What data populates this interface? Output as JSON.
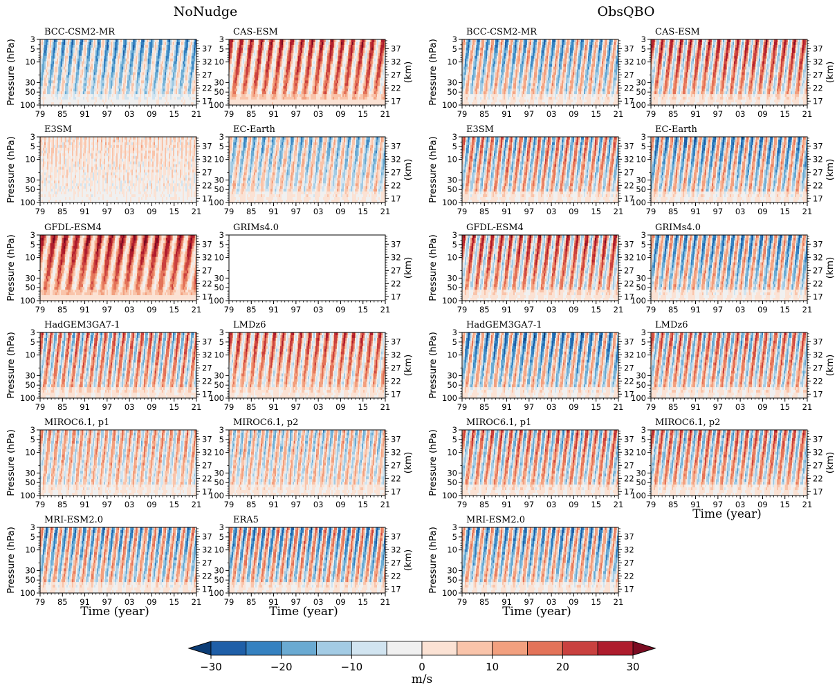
{
  "figure": {
    "column_titles": [
      "NoNudge",
      "ObsQBO"
    ],
    "colorbar_label": "m/s"
  },
  "chart_data": {
    "type": "heatmap",
    "variable_unit": "m/s",
    "x_tick_labels": [
      "79",
      "85",
      "91",
      "97",
      "03",
      "09",
      "15",
      "21"
    ],
    "x_label": "Time (year)",
    "y_label": "Pressure (hPa)",
    "y_ticks": [
      3,
      5,
      10,
      30,
      50,
      100
    ],
    "y_range": [
      100,
      3
    ],
    "y_scale": "log",
    "right_axis_label": "(km)",
    "right_ticks": [
      17,
      22,
      27,
      32,
      37
    ],
    "colorbar": {
      "levels": [
        -35,
        -30,
        -25,
        -20,
        -15,
        -10,
        -5,
        0,
        5,
        10,
        15,
        20,
        25,
        30,
        35
      ],
      "tick_values": [
        -30,
        -20,
        -10,
        0,
        10,
        20,
        30
      ],
      "tick_labels": [
        "−30",
        "−20",
        "−10",
        "0",
        "10",
        "20",
        "30"
      ],
      "colors": [
        "#0b3c75",
        "#1f5fa8",
        "#3581c0",
        "#6aaad2",
        "#a3cbe4",
        "#d1e4f0",
        "#f0f0f0",
        "#fbe2d4",
        "#f9c4aa",
        "#f2a07f",
        "#e37359",
        "#c9413f",
        "#ae1c2d",
        "#7b0c22"
      ],
      "extend": "both"
    },
    "panels": [
      {
        "column": 0,
        "row": 0,
        "title": "BCC-CSM2-MR",
        "upper_bias": -10,
        "lower_bias": -4,
        "amp": 16,
        "period": 26,
        "empty": false
      },
      {
        "column": 0,
        "row": 0,
        "title": "CAS-ESM",
        "upper_bias": 12,
        "lower_bias": 10,
        "amp": 18,
        "period": 30,
        "empty": false
      },
      {
        "column": 0,
        "row": 1,
        "title": "E3SM",
        "upper_bias": 3,
        "lower_bias": -3,
        "amp": 6,
        "period": 12,
        "empty": false
      },
      {
        "column": 0,
        "row": 1,
        "title": "EC-Earth",
        "upper_bias": -6,
        "lower_bias": 2,
        "amp": 16,
        "period": 28,
        "empty": false
      },
      {
        "column": 0,
        "row": 2,
        "title": "GFDL-ESM4",
        "upper_bias": 16,
        "lower_bias": 10,
        "amp": 16,
        "period": 34,
        "empty": false
      },
      {
        "column": 0,
        "row": 2,
        "title": "GRIMs4.0",
        "empty": true
      },
      {
        "column": 0,
        "row": 3,
        "title": "HadGEM3GA7-1",
        "upper_bias": 2,
        "lower_bias": 4,
        "amp": 22,
        "period": 27,
        "empty": false
      },
      {
        "column": 0,
        "row": 3,
        "title": "LMDz6",
        "upper_bias": 10,
        "lower_bias": 2,
        "amp": 18,
        "period": 26,
        "empty": false
      },
      {
        "column": 0,
        "row": 4,
        "title": "MIROC6.1, p1",
        "upper_bias": 2,
        "lower_bias": 0,
        "amp": 16,
        "period": 24,
        "empty": false
      },
      {
        "column": 0,
        "row": 4,
        "title": "MIROC6.1, p2",
        "upper_bias": -2,
        "lower_bias": 2,
        "amp": 16,
        "period": 24,
        "empty": false
      },
      {
        "column": 0,
        "row": 5,
        "title": "MRI-ESM2.0",
        "upper_bias": -4,
        "lower_bias": 2,
        "amp": 22,
        "period": 28,
        "empty": false
      },
      {
        "column": 0,
        "row": 5,
        "title": "ERA5",
        "upper_bias": -4,
        "lower_bias": 2,
        "amp": 24,
        "period": 28,
        "empty": false
      },
      {
        "column": 1,
        "row": 0,
        "title": "BCC-CSM2-MR",
        "upper_bias": -6,
        "lower_bias": 2,
        "amp": 20,
        "period": 28,
        "empty": false
      },
      {
        "column": 1,
        "row": 0,
        "title": "CAS-ESM",
        "upper_bias": 8,
        "lower_bias": 2,
        "amp": 22,
        "period": 28,
        "empty": false
      },
      {
        "column": 1,
        "row": 1,
        "title": "E3SM",
        "upper_bias": 0,
        "lower_bias": 2,
        "amp": 22,
        "period": 28,
        "empty": false
      },
      {
        "column": 1,
        "row": 1,
        "title": "EC-Earth",
        "upper_bias": -6,
        "lower_bias": 2,
        "amp": 22,
        "period": 28,
        "empty": false
      },
      {
        "column": 1,
        "row": 2,
        "title": "GFDL-ESM4",
        "upper_bias": 8,
        "lower_bias": 2,
        "amp": 22,
        "period": 28,
        "empty": false
      },
      {
        "column": 1,
        "row": 2,
        "title": "GRIMs4.0",
        "upper_bias": -6,
        "lower_bias": 2,
        "amp": 22,
        "period": 28,
        "empty": false
      },
      {
        "column": 1,
        "row": 3,
        "title": "HadGEM3GA7-1",
        "upper_bias": -8,
        "lower_bias": 2,
        "amp": 22,
        "period": 28,
        "empty": false
      },
      {
        "column": 1,
        "row": 3,
        "title": "LMDz6",
        "upper_bias": 2,
        "lower_bias": 2,
        "amp": 22,
        "period": 28,
        "empty": false
      },
      {
        "column": 1,
        "row": 4,
        "title": "MIROC6.1, p1",
        "upper_bias": 2,
        "lower_bias": 2,
        "amp": 22,
        "period": 28,
        "empty": false
      },
      {
        "column": 1,
        "row": 4,
        "title": "MIROC6.1, p2",
        "upper_bias": 2,
        "lower_bias": 2,
        "amp": 22,
        "period": 28,
        "empty": false
      },
      {
        "column": 1,
        "row": 5,
        "title": "MRI-ESM2.0",
        "upper_bias": -6,
        "lower_bias": 2,
        "amp": 22,
        "period": 28,
        "empty": false
      }
    ]
  }
}
